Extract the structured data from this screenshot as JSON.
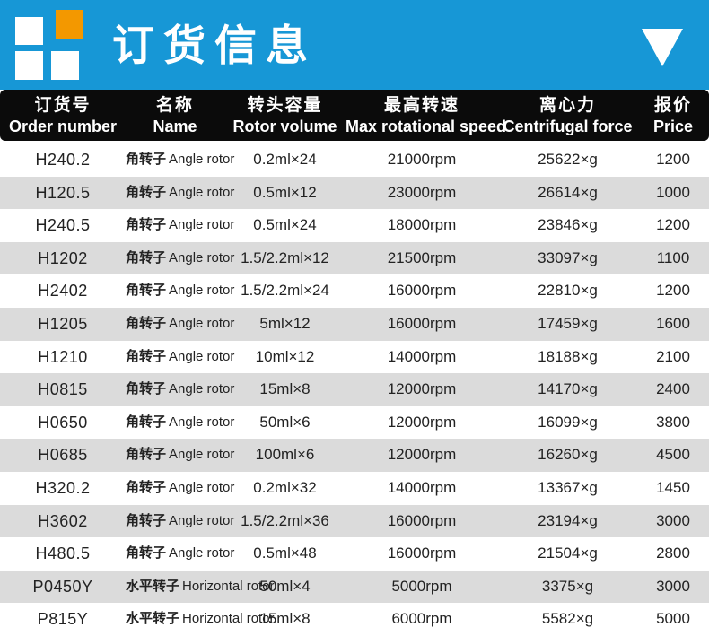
{
  "banner": {
    "title": "订货信息",
    "bg_color": "#1797d6",
    "logo_square_colors": [
      "#ffffff",
      "#f39800",
      "#ffffff",
      "#ffffff"
    ],
    "triangle_icon": "triangle-down",
    "triangle_color": "#ffffff"
  },
  "table": {
    "header_bg": "#0b0b0b",
    "alt_row_bg": "#dbdbdb",
    "columns": [
      {
        "zh": "订货号",
        "en": "Order number"
      },
      {
        "zh": "名称",
        "en": "Name"
      },
      {
        "zh": "转头容量",
        "en": "Rotor volume"
      },
      {
        "zh": "最高转速",
        "en": "Max rotational speed"
      },
      {
        "zh": "离心力",
        "en": "Centrifugal force"
      },
      {
        "zh": "报价",
        "en": "Price"
      }
    ],
    "rows": [
      {
        "order": "H240.2",
        "name_zh": "角转子",
        "name_en": "Angle rotor",
        "volume": "0.2ml×24",
        "speed": "21000rpm",
        "force": "25622×g",
        "price": "1200"
      },
      {
        "order": "H120.5",
        "name_zh": "角转子",
        "name_en": "Angle rotor",
        "volume": "0.5ml×12",
        "speed": "23000rpm",
        "force": "26614×g",
        "price": "1000"
      },
      {
        "order": "H240.5",
        "name_zh": "角转子",
        "name_en": "Angle rotor",
        "volume": "0.5ml×24",
        "speed": "18000rpm",
        "force": "23846×g",
        "price": "1200"
      },
      {
        "order": "H1202",
        "name_zh": "角转子",
        "name_en": "Angle rotor",
        "volume": "1.5/2.2ml×12",
        "speed": "21500rpm",
        "force": "33097×g",
        "price": "1100"
      },
      {
        "order": "H2402",
        "name_zh": "角转子",
        "name_en": "Angle rotor",
        "volume": "1.5/2.2ml×24",
        "speed": "16000rpm",
        "force": "22810×g",
        "price": "1200"
      },
      {
        "order": "H1205",
        "name_zh": "角转子",
        "name_en": "Angle rotor",
        "volume": "5ml×12",
        "speed": "16000rpm",
        "force": "17459×g",
        "price": "1600"
      },
      {
        "order": "H1210",
        "name_zh": "角转子",
        "name_en": "Angle rotor",
        "volume": "10ml×12",
        "speed": "14000rpm",
        "force": "18188×g",
        "price": "2100"
      },
      {
        "order": "H0815",
        "name_zh": "角转子",
        "name_en": "Angle rotor",
        "volume": "15ml×8",
        "speed": "12000rpm",
        "force": "14170×g",
        "price": "2400"
      },
      {
        "order": "H0650",
        "name_zh": "角转子",
        "name_en": "Angle rotor",
        "volume": "50ml×6",
        "speed": "12000rpm",
        "force": "16099×g",
        "price": "3800"
      },
      {
        "order": "H0685",
        "name_zh": "角转子",
        "name_en": "Angle rotor",
        "volume": "100ml×6",
        "speed": "12000rpm",
        "force": "16260×g",
        "price": "4500"
      },
      {
        "order": "H320.2",
        "name_zh": "角转子",
        "name_en": "Angle rotor",
        "volume": "0.2ml×32",
        "speed": "14000rpm",
        "force": "13367×g",
        "price": "1450"
      },
      {
        "order": "H3602",
        "name_zh": "角转子",
        "name_en": "Angle rotor",
        "volume": "1.5/2.2ml×36",
        "speed": "16000rpm",
        "force": "23194×g",
        "price": "3000"
      },
      {
        "order": "H480.5",
        "name_zh": "角转子",
        "name_en": "Angle rotor",
        "volume": "0.5ml×48",
        "speed": "16000rpm",
        "force": "21504×g",
        "price": "2800"
      },
      {
        "order": "P0450Y",
        "name_zh": "水平转子",
        "name_en": "Horizontal rotor",
        "volume": "50ml×4",
        "speed": "5000rpm",
        "force": "3375×g",
        "price": "3000"
      },
      {
        "order": "P815Y",
        "name_zh": "水平转子",
        "name_en": "Horizontal rotor",
        "volume": "15ml×8",
        "speed": "6000rpm",
        "force": "5582×g",
        "price": "5000"
      }
    ]
  }
}
